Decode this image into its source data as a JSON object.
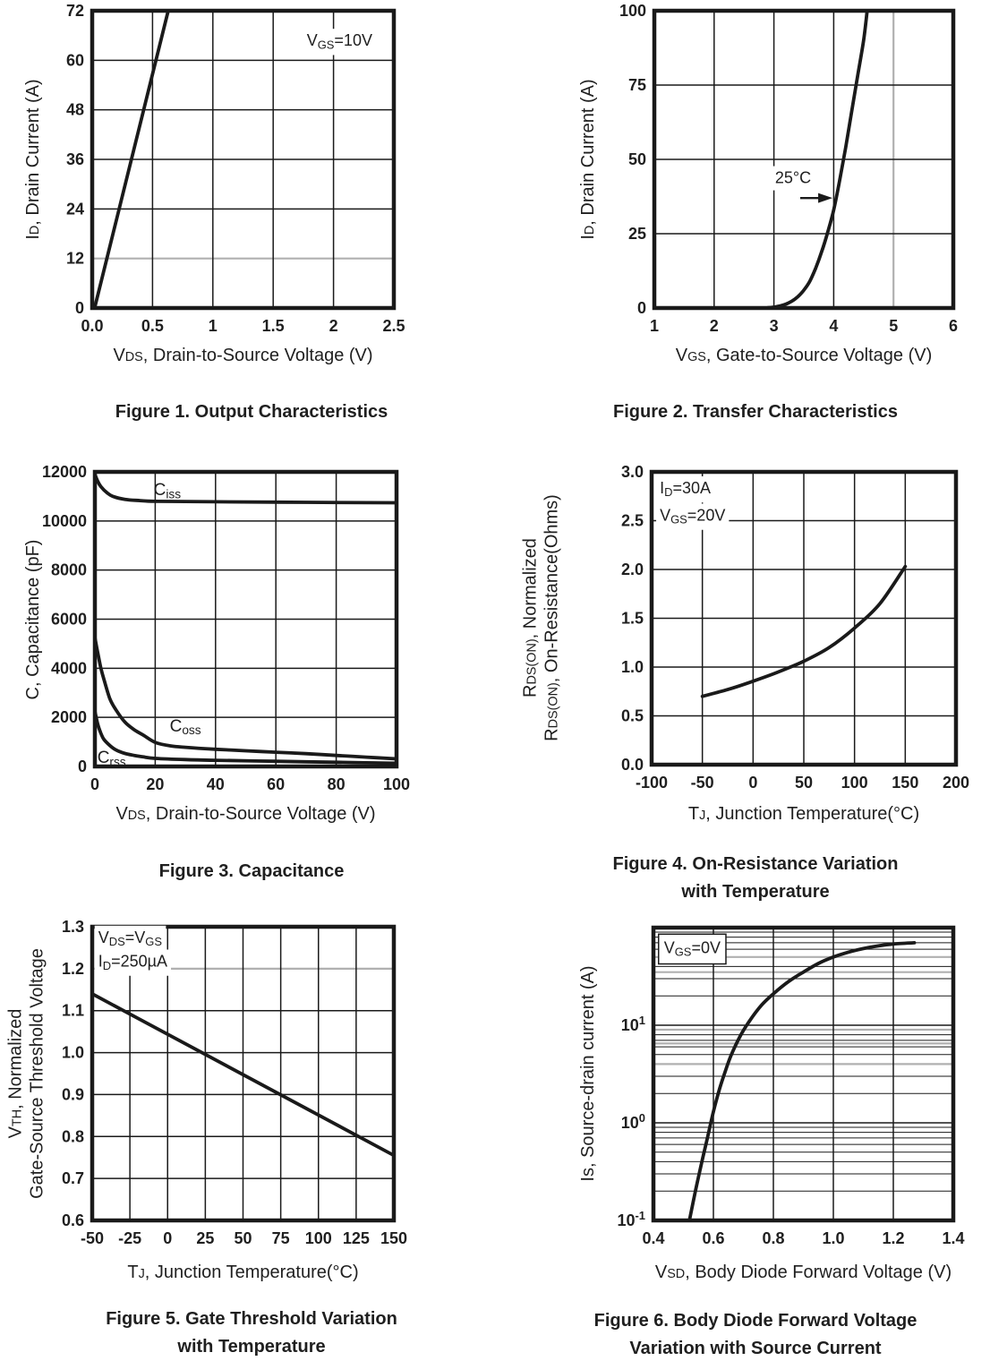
{
  "page": {
    "background": "#ffffff",
    "text_color": "#1f1f1f",
    "grid_color": "#1a1a1a",
    "gray_line_color": "#b0b0b0"
  },
  "chart_data": [
    {
      "type": "line",
      "caption": "Figure 1. Output Characteristics",
      "xlabel": [
        [
          "V"
        ],
        [
          "DS",
          "small"
        ],
        [
          ", Drain-to-Source Voltage (V)"
        ]
      ],
      "ylabel": [
        [
          [
            "I"
          ],
          [
            "D",
            "small"
          ],
          [
            ", Drain Current (A)"
          ]
        ]
      ],
      "xlim": [
        0,
        2.5
      ],
      "ylim": [
        0,
        72
      ],
      "yscale": "linear",
      "xticks": [
        0,
        0.5,
        1,
        1.5,
        2,
        2.5
      ],
      "xtick_labels": [
        "0.0",
        "0.5",
        "1",
        "1.5",
        "2",
        "2.5"
      ],
      "yticks": [
        0,
        12,
        24,
        36,
        48,
        60,
        72
      ],
      "ytick_labels": [
        "0",
        "12",
        "24",
        "36",
        "48",
        "60",
        "72"
      ],
      "grid": {
        "v": [
          0.5,
          1,
          1.5,
          2
        ],
        "h": [
          24,
          36,
          48,
          60
        ],
        "gray_v": [],
        "gray_h": [
          12
        ],
        "h_minor": []
      },
      "series": [
        {
          "name": "VGS=10V",
          "points": [
            [
              0.02,
              0
            ],
            [
              0.63,
              72
            ]
          ]
        }
      ],
      "annotations": [
        {
          "rich": [
            [
              "V"
            ],
            [
              "GS",
              "sub"
            ],
            [
              "=10V"
            ]
          ],
          "at": [
            2.05,
            63.5
          ],
          "anchor": "middle",
          "bg": true
        }
      ],
      "curve_labels": []
    },
    {
      "type": "line",
      "caption": "Figure 2. Transfer Characteristics",
      "xlabel": [
        [
          "V"
        ],
        [
          "GS",
          "small"
        ],
        [
          ", Gate-to-Source Voltage (V)"
        ]
      ],
      "ylabel": [
        [
          [
            "I"
          ],
          [
            "D",
            "small"
          ],
          [
            ", Drain Current (A)"
          ]
        ]
      ],
      "xlim": [
        1,
        6
      ],
      "ylim": [
        0,
        100
      ],
      "yscale": "linear",
      "xticks": [
        1,
        2,
        3,
        4,
        5,
        6
      ],
      "xtick_labels": [
        "1",
        "2",
        "3",
        "4",
        "5",
        "6"
      ],
      "yticks": [
        0,
        25,
        50,
        75,
        100
      ],
      "ytick_labels": [
        "0",
        "25",
        "50",
        "75",
        "100"
      ],
      "grid": {
        "v": [
          2,
          3,
          4
        ],
        "h": [
          25,
          50,
          75
        ],
        "gray_v": [
          5
        ],
        "gray_h": [],
        "h_minor": []
      },
      "series": [
        {
          "name": "25C",
          "points": [
            [
              2.9,
              0.1
            ],
            [
              3.0,
              0.3
            ],
            [
              3.1,
              0.7
            ],
            [
              3.2,
              1.3
            ],
            [
              3.3,
              2.3
            ],
            [
              3.4,
              3.8
            ],
            [
              3.5,
              6
            ],
            [
              3.6,
              9
            ],
            [
              3.7,
              13.5
            ],
            [
              3.8,
              19
            ],
            [
              3.9,
              25.5
            ],
            [
              4.0,
              33
            ],
            [
              4.1,
              43
            ],
            [
              4.2,
              54
            ],
            [
              4.3,
              66
            ],
            [
              4.4,
              78
            ],
            [
              4.5,
              90
            ],
            [
              4.56,
              100
            ]
          ]
        }
      ],
      "annotations": [
        {
          "rich": [
            [
              "25°C"
            ]
          ],
          "at": [
            3.32,
            42
          ],
          "anchor": "middle",
          "bg": true
        },
        {
          "arrow": [
            3.44,
            37,
            3.98,
            37
          ]
        }
      ],
      "curve_labels": []
    },
    {
      "type": "line",
      "caption": "Figure 3. Capacitance",
      "xlabel": [
        [
          "V"
        ],
        [
          "DS",
          "small"
        ],
        [
          ", Drain-to-Source Voltage (V)"
        ]
      ],
      "ylabel": [
        [
          [
            "C, Capacitance (pF)"
          ]
        ]
      ],
      "xlim": [
        0,
        100
      ],
      "ylim": [
        0,
        12000
      ],
      "yscale": "linear",
      "xticks": [
        0,
        20,
        40,
        60,
        80,
        100
      ],
      "xtick_labels": [
        "0",
        "20",
        "40",
        "60",
        "80",
        "100"
      ],
      "yticks": [
        0,
        2000,
        4000,
        6000,
        8000,
        10000,
        12000
      ],
      "ytick_labels": [
        "0",
        "2000",
        "4000",
        "6000",
        "8000",
        "10000",
        "12000"
      ],
      "grid": {
        "v": [
          20,
          40,
          60,
          80
        ],
        "h": [
          2000,
          4000,
          6000,
          8000,
          10000
        ],
        "gray_v": [],
        "gray_h": [],
        "h_minor": []
      },
      "series": [
        {
          "name": "Ciss",
          "points": [
            [
              0,
              11900
            ],
            [
              1,
              11600
            ],
            [
              2,
              11400
            ],
            [
              4,
              11150
            ],
            [
              6,
              11000
            ],
            [
              10,
              10880
            ],
            [
              15,
              10830
            ],
            [
              20,
              10800
            ],
            [
              40,
              10780
            ],
            [
              70,
              10760
            ],
            [
              100,
              10740
            ]
          ]
        },
        {
          "name": "Coss",
          "points": [
            [
              0,
              5250
            ],
            [
              1,
              4600
            ],
            [
              2,
              4000
            ],
            [
              3,
              3550
            ],
            [
              5,
              2750
            ],
            [
              7,
              2300
            ],
            [
              10,
              1800
            ],
            [
              13,
              1500
            ],
            [
              16,
              1280
            ],
            [
              20,
              980
            ],
            [
              25,
              840
            ],
            [
              30,
              780
            ],
            [
              40,
              700
            ],
            [
              50,
              640
            ],
            [
              60,
              580
            ],
            [
              70,
              520
            ],
            [
              80,
              450
            ],
            [
              90,
              380
            ],
            [
              100,
              310
            ]
          ]
        },
        {
          "name": "Crss",
          "points": [
            [
              0,
              2250
            ],
            [
              1,
              1700
            ],
            [
              2,
              1350
            ],
            [
              3,
              1100
            ],
            [
              5,
              850
            ],
            [
              7,
              670
            ],
            [
              10,
              530
            ],
            [
              13,
              450
            ],
            [
              16,
              390
            ],
            [
              20,
              330
            ],
            [
              30,
              280
            ],
            [
              40,
              250
            ],
            [
              60,
              210
            ],
            [
              80,
              170
            ],
            [
              100,
              130
            ]
          ]
        }
      ],
      "annotations": [],
      "curve_labels": [
        {
          "rich": [
            [
              "C"
            ],
            [
              "iss",
              "sub"
            ]
          ],
          "at": [
            24,
            11050
          ],
          "anchor": "middle"
        },
        {
          "rich": [
            [
              "C"
            ],
            [
              "oss",
              "sub"
            ]
          ],
          "at": [
            30,
            1430
          ],
          "anchor": "middle"
        },
        {
          "rich": [
            [
              "C"
            ],
            [
              "rss",
              "sub"
            ]
          ],
          "at": [
            0.8,
            150
          ],
          "anchor": "start"
        }
      ]
    },
    {
      "type": "line",
      "caption": "Figure 4. On-Resistance Variation\nwith Temperature",
      "xlabel": [
        [
          "T"
        ],
        [
          "J",
          "small"
        ],
        [
          ", Junction Temperature(°C)"
        ]
      ],
      "ylabel": [
        [
          [
            "R"
          ],
          [
            "DS(ON)",
            "small"
          ],
          [
            ", Normalized"
          ]
        ],
        [
          [
            "R"
          ],
          [
            "DS(ON)",
            "small"
          ],
          [
            ", On-Resistance(Ohms)"
          ]
        ]
      ],
      "xlim": [
        -100,
        200
      ],
      "ylim": [
        0,
        3
      ],
      "yscale": "linear",
      "xticks": [
        -100,
        -50,
        0,
        50,
        100,
        150,
        200
      ],
      "xtick_labels": [
        "-100",
        "-50",
        "0",
        "50",
        "100",
        "150",
        "200"
      ],
      "yticks": [
        0,
        0.5,
        1,
        1.5,
        2,
        2.5,
        3
      ],
      "ytick_labels": [
        "0.0",
        "0.5",
        "1.0",
        "1.5",
        "2.0",
        "2.5",
        "3.0"
      ],
      "grid": {
        "v": [
          -50,
          0,
          50,
          100,
          150
        ],
        "h": [
          0.5,
          1,
          1.5,
          2,
          2.5
        ],
        "gray_v": [],
        "gray_h": [],
        "h_minor": []
      },
      "series": [
        {
          "name": "ID=30A VGS=20V",
          "points": [
            [
              -50,
              0.7
            ],
            [
              -25,
              0.77
            ],
            [
              0,
              0.855
            ],
            [
              25,
              0.95
            ],
            [
              50,
              1.06
            ],
            [
              75,
              1.2
            ],
            [
              100,
              1.4
            ],
            [
              125,
              1.65
            ],
            [
              150,
              2.03
            ]
          ]
        }
      ],
      "annotations": [
        {
          "rich": [
            [
              "I"
            ],
            [
              "D",
              "sub"
            ],
            [
              "=30A"
            ]
          ],
          "at": [
            -92,
            2.78
          ],
          "anchor": "start",
          "bg": true
        },
        {
          "rich": [
            [
              "V"
            ],
            [
              "GS",
              "sub"
            ],
            [
              "=20V"
            ]
          ],
          "at": [
            -92,
            2.5
          ],
          "anchor": "start",
          "bg": true
        }
      ],
      "curve_labels": []
    },
    {
      "type": "line",
      "caption": "Figure 5. Gate Threshold Variation\nwith Temperature",
      "xlabel": [
        [
          "T"
        ],
        [
          "J",
          "small"
        ],
        [
          ", Junction Temperature(°C)"
        ]
      ],
      "ylabel": [
        [
          [
            "V"
          ],
          [
            "TH",
            "small"
          ],
          [
            ", Normalized"
          ]
        ],
        [
          [
            "Gate-Source Threshold Voltage"
          ]
        ]
      ],
      "xlim": [
        -50,
        150
      ],
      "ylim": [
        0.6,
        1.3
      ],
      "yscale": "linear",
      "xticks": [
        -50,
        -25,
        0,
        25,
        50,
        75,
        100,
        125,
        150
      ],
      "xtick_labels": [
        "-50",
        "-25",
        "0",
        "25",
        "50",
        "75",
        "100",
        "125",
        "150"
      ],
      "yticks": [
        0.6,
        0.7,
        0.8,
        0.9,
        1.0,
        1.1,
        1.2,
        1.3
      ],
      "ytick_labels": [
        "0.6",
        "0.7",
        "0.8",
        "0.9",
        "1.0",
        "1.1",
        "1.2",
        "1.3"
      ],
      "grid": {
        "v": [
          -25,
          0,
          25,
          50,
          75,
          100,
          125
        ],
        "h": [
          0.7,
          0.8,
          0.9,
          1.0,
          1.1
        ],
        "gray_v": [],
        "gray_h": [
          1.2
        ],
        "h_minor": []
      },
      "series": [
        {
          "name": "VDS=VGS ID=250uA",
          "points": [
            [
              -50,
              1.14
            ],
            [
              150,
              0.755
            ]
          ]
        }
      ],
      "annotations": [
        {
          "rich": [
            [
              "V"
            ],
            [
              "DS",
              "sub"
            ],
            [
              "=V"
            ],
            [
              "GS",
              "sub"
            ]
          ],
          "at": [
            -46,
            1.262
          ],
          "anchor": "start",
          "bg": true
        },
        {
          "rich": [
            [
              "I"
            ],
            [
              "D",
              "sub"
            ],
            [
              "=250µA"
            ]
          ],
          "at": [
            -46,
            1.205
          ],
          "anchor": "start",
          "bg": true
        }
      ],
      "curve_labels": []
    },
    {
      "type": "line",
      "caption": "Figure 6. Body Diode Forward Voltage\nVariation with Source Current",
      "xlabel": [
        [
          "V"
        ],
        [
          "SD",
          "small"
        ],
        [
          ", Body Diode Forward Voltage (V)"
        ]
      ],
      "ylabel": [
        [
          [
            "Is, Source-drain current (A)"
          ]
        ]
      ],
      "xlim": [
        0.4,
        1.4
      ],
      "ylim": [
        0.1,
        100
      ],
      "yscale": "log",
      "xticks": [
        0.4,
        0.6,
        0.8,
        1.0,
        1.2,
        1.4
      ],
      "xtick_labels": [
        "0.4",
        "0.6",
        "0.8",
        "1.0",
        "1.2",
        "1.4"
      ],
      "yticks": [
        10,
        1,
        0.1
      ],
      "ytick_labels": [
        {
          "b": "10",
          "e": "1"
        },
        {
          "b": "10",
          "e": "0"
        },
        {
          "b": "10",
          "e": "-1"
        }
      ],
      "grid": {
        "v": [
          0.6,
          0.8,
          1.0,
          1.2
        ],
        "h": [
          1,
          10
        ],
        "h_minor": [
          0.2,
          0.3,
          0.4,
          0.5,
          0.6,
          0.7,
          0.8,
          0.9,
          2,
          3,
          4,
          5,
          6,
          7,
          8,
          9,
          20,
          30,
          40,
          50,
          60,
          70,
          80,
          90
        ],
        "gray_v": [],
        "gray_h": [
          50,
          35,
          9,
          6.5,
          4
        ]
      },
      "series": [
        {
          "name": "VGS=0V",
          "points": [
            [
              0.52,
              0.1
            ],
            [
              0.54,
              0.2
            ],
            [
              0.56,
              0.38
            ],
            [
              0.58,
              0.7
            ],
            [
              0.6,
              1.3
            ],
            [
              0.62,
              2.2
            ],
            [
              0.64,
              3.4
            ],
            [
              0.66,
              5.0
            ],
            [
              0.69,
              7.8
            ],
            [
              0.72,
              11
            ],
            [
              0.76,
              16
            ],
            [
              0.8,
              21
            ],
            [
              0.85,
              28
            ],
            [
              0.9,
              35
            ],
            [
              0.95,
              43
            ],
            [
              1.0,
              50
            ],
            [
              1.05,
              56
            ],
            [
              1.1,
              61
            ],
            [
              1.15,
              65
            ],
            [
              1.2,
              68
            ],
            [
              1.27,
              70
            ]
          ]
        }
      ],
      "annotations": [
        {
          "rich": [
            [
              "V"
            ],
            [
              "GS",
              "sub"
            ],
            [
              "=0V"
            ]
          ],
          "at": [
            0.435,
            55
          ],
          "anchor": "start",
          "bg": true,
          "box": true
        }
      ],
      "curve_labels": []
    }
  ]
}
